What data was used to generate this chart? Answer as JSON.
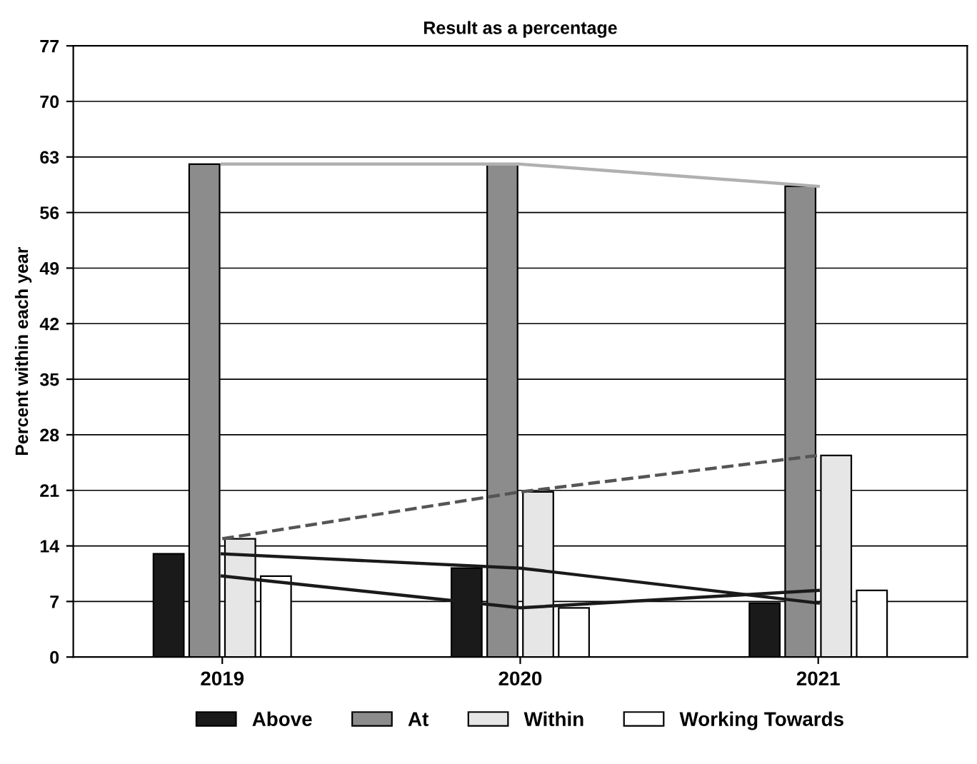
{
  "chart_data": {
    "type": "bar",
    "title": "Result as a percentage",
    "ylabel": "Percent within each year",
    "categories": [
      "2019",
      "2020",
      "2021"
    ],
    "series": [
      {
        "name": "Above",
        "color": "#1a1a1a",
        "values": [
          13.0,
          11.2,
          6.8
        ]
      },
      {
        "name": "At",
        "color": "#8c8c8c",
        "values": [
          62.1,
          62.1,
          59.3
        ]
      },
      {
        "name": "Within",
        "color": "#e6e6e6",
        "values": [
          14.9,
          20.8,
          25.4
        ]
      },
      {
        "name": "Working Towards",
        "color": "#ffffff",
        "values": [
          10.2,
          6.2,
          8.4
        ]
      },
      {
        "type": "line",
        "color": "#1a1a1a",
        "line_style": "solid",
        "values": [
          13.0,
          11.2,
          6.8
        ]
      },
      {
        "type": "line",
        "color": "#b0b0b0",
        "line_style": "solid",
        "values": [
          62.1,
          62.1,
          59.3
        ]
      },
      {
        "type": "line",
        "color": "#555555",
        "line_style": "dashed",
        "values": [
          14.9,
          20.8,
          25.4
        ]
      },
      {
        "type": "line",
        "color": "#1a1a1a",
        "line_style": "solid",
        "values": [
          10.2,
          6.2,
          8.4
        ]
      }
    ],
    "ylim": [
      0,
      77
    ],
    "yticks": [
      0,
      7,
      14,
      21,
      28,
      35,
      42,
      49,
      56,
      63,
      70,
      77
    ],
    "grid": "y",
    "legend": "bottom",
    "marker": "none"
  }
}
